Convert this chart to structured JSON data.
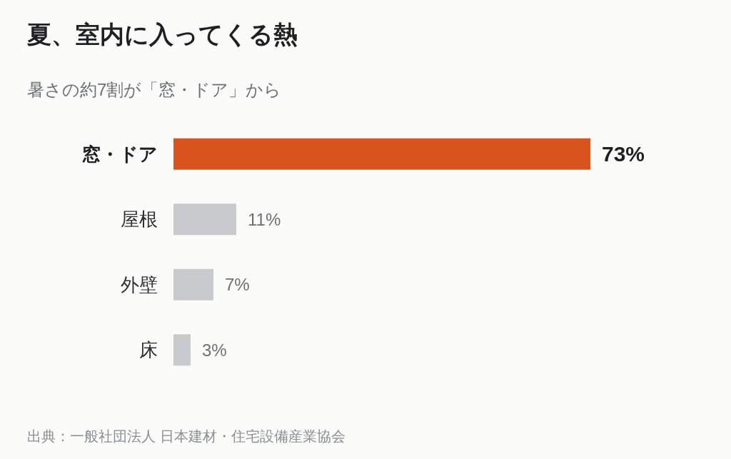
{
  "chart_data": {
    "type": "bar",
    "orientation": "horizontal",
    "title": "夏、室内に入ってくる熱",
    "subtitle": "暑さの約7割が「窓・ドア」から",
    "categories": [
      "窓・ドア",
      "屋根",
      "外壁",
      "床"
    ],
    "values": [
      73,
      11,
      7,
      3
    ],
    "colors": [
      "#d9531f",
      "#c9cacd",
      "#c9cacd",
      "#c9cacd"
    ],
    "value_labels": [
      "73%",
      "11%",
      "7%",
      "3%"
    ],
    "annotations": [
      "出典：一般社団法人 日本建材・住宅設備産業協会"
    ]
  }
}
